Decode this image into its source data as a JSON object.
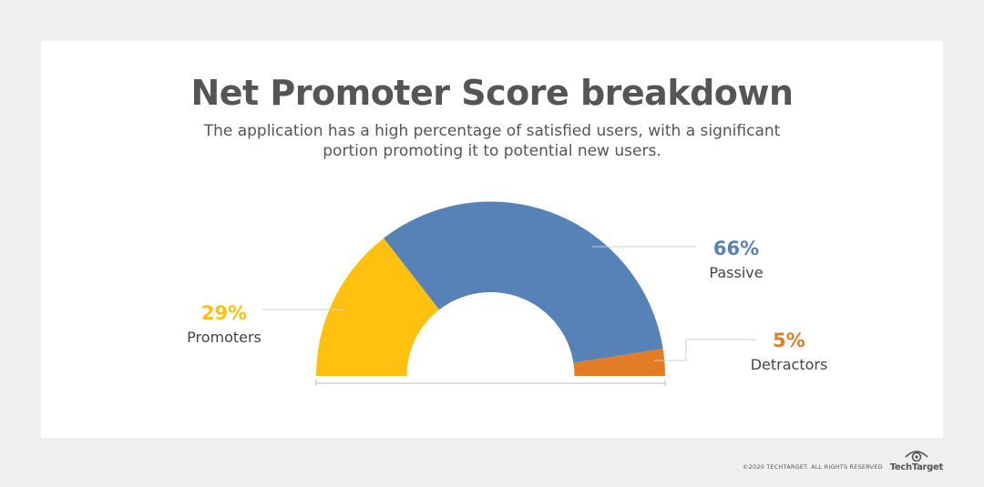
{
  "header": {
    "title": "Net Promoter Score breakdown",
    "subtitle": "The application has a high percentage of satisfied users, with a significant portion promoting it to potential new users."
  },
  "chart_data": {
    "type": "pie",
    "style": "semicircle-donut",
    "categories": [
      "Promoters",
      "Passive",
      "Detractors"
    ],
    "values": [
      29,
      66,
      5
    ],
    "value_labels": [
      "29%",
      "66%",
      "5%"
    ],
    "colors": [
      "#fec110",
      "#5682b8",
      "#e27c27"
    ],
    "label_colors": [
      "#fec110",
      "#5682b8",
      "#e27c27"
    ]
  },
  "footer": {
    "copyright": "©2020 TECHTARGET. ALL RIGHTS RESERVED",
    "brand": "TechTarget"
  }
}
